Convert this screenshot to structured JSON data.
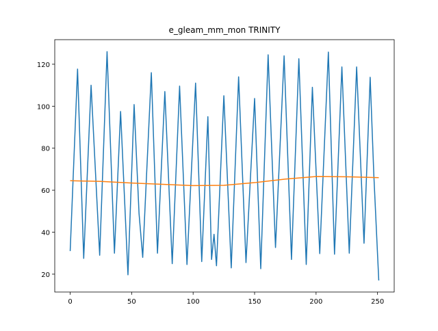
{
  "chart_data": {
    "type": "line",
    "title": "e_gleam_mm_mon TRINITY",
    "xlim": [
      -12.55,
      263.55
    ],
    "xticks": [
      0,
      50,
      100,
      150,
      200,
      250
    ],
    "ylim": [
      11.5,
      131.7
    ],
    "yticks": [
      20,
      40,
      60,
      80,
      100,
      120
    ],
    "series": [
      {
        "color": "#1f77b4",
        "x": [
          0,
          6,
          11,
          17,
          24,
          30,
          36,
          41,
          47,
          52,
          56,
          59,
          66,
          71,
          77,
          83,
          89,
          95,
          102,
          107,
          112,
          115,
          117,
          119,
          125,
          131,
          137,
          143,
          150,
          155,
          161,
          167,
          174,
          180,
          186,
          192,
          197,
          203,
          210,
          215,
          221,
          227,
          233,
          239,
          244,
          247,
          251
        ],
        "values": [
          31,
          117.7,
          27.5,
          110,
          29,
          126,
          30,
          97.5,
          19.7,
          100.8,
          49,
          28,
          116,
          30,
          107,
          25,
          109.6,
          24.6,
          111,
          26,
          95,
          27,
          39,
          24,
          105,
          23,
          114,
          25.5,
          103.7,
          22.6,
          124.5,
          32.7,
          124,
          27,
          122.6,
          24.6,
          109,
          29.8,
          125.8,
          29.5,
          118.7,
          30,
          118.7,
          34.7,
          113.8,
          67,
          17
        ]
      },
      {
        "color": "#ff7f0e",
        "x": [
          0,
          25,
          50,
          75,
          100,
          125,
          150,
          175,
          200,
          225,
          251
        ],
        "values": [
          64.5,
          64.2,
          63.4,
          62.8,
          62.2,
          62.3,
          63.6,
          65.3,
          66.5,
          66.4,
          66
        ]
      }
    ]
  }
}
